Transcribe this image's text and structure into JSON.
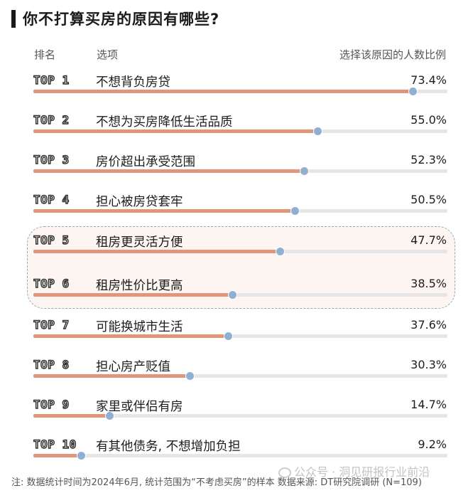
{
  "title": "你不打算买房的原因有哪些?",
  "headers": {
    "rank": "排名",
    "option": "选项",
    "ratio": "选择该原因的人数比例"
  },
  "colors": {
    "bar": "#e3957c",
    "track": "#e6e6e6",
    "dot": "#8fb0d3",
    "highlight": "#fcf5f1"
  },
  "chart_data": {
    "type": "bar",
    "orientation": "horizontal",
    "xlim": [
      0,
      80
    ],
    "highlighted_ranks": [
      "TOP 5",
      "TOP 6"
    ],
    "rows": [
      {
        "rank": "TOP 1",
        "label": "不想背负房贷",
        "value": 73.4,
        "value_label": "73.4%"
      },
      {
        "rank": "TOP 2",
        "label": "不想为买房降低生活品质",
        "value": 55.0,
        "value_label": "55.0%"
      },
      {
        "rank": "TOP 3",
        "label": "房价超出承受范围",
        "value": 52.3,
        "value_label": "52.3%"
      },
      {
        "rank": "TOP 4",
        "label": "担心被房贷套牢",
        "value": 50.5,
        "value_label": "50.5%"
      },
      {
        "rank": "TOP 5",
        "label": "租房更灵活方便",
        "value": 47.7,
        "value_label": "47.7%"
      },
      {
        "rank": "TOP 6",
        "label": "租房性价比更高",
        "value": 38.5,
        "value_label": "38.5%"
      },
      {
        "rank": "TOP 7",
        "label": "可能换城市生活",
        "value": 37.6,
        "value_label": "37.6%"
      },
      {
        "rank": "TOP 8",
        "label": "担心房产贬值",
        "value": 30.3,
        "value_label": "30.3%"
      },
      {
        "rank": "TOP 9",
        "label": "家里或伴侣有房",
        "value": 14.7,
        "value_label": "14.7%"
      },
      {
        "rank": "TOP 10",
        "label": "有其他债务, 不想增加负担",
        "value": 9.2,
        "value_label": "9.2%"
      }
    ]
  },
  "footnote": "注: 数据统计时间为2024年6月, 统计范围为“不考虑买房”的样本 数据来源: DT研究院调研 (N=109)",
  "watermark": "公众号 · 洞见研报行业前沿"
}
